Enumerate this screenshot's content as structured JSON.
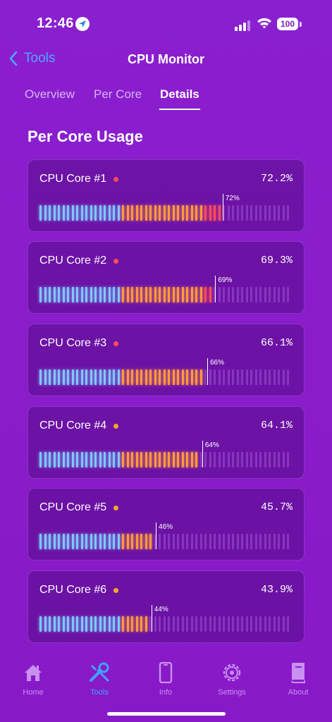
{
  "status_bar": {
    "time": "12:46",
    "battery": "100"
  },
  "nav": {
    "back_label": "Tools",
    "title": "CPU Monitor"
  },
  "tabs": [
    {
      "label": "Overview",
      "active": false
    },
    {
      "label": "Per Core",
      "active": false
    },
    {
      "label": "Details",
      "active": true
    }
  ],
  "section": {
    "title": "Per Core Usage"
  },
  "cores": [
    {
      "name": "CPU Core #1",
      "value": "72.2%",
      "marker": "72%",
      "usage": 0.722,
      "dot_color": "#ff4d5a"
    },
    {
      "name": "CPU Core #2",
      "value": "69.3%",
      "marker": "69%",
      "usage": 0.693,
      "dot_color": "#ff4d5a"
    },
    {
      "name": "CPU Core #3",
      "value": "66.1%",
      "marker": "66%",
      "usage": 0.661,
      "dot_color": "#ff4d5a"
    },
    {
      "name": "CPU Core #4",
      "value": "64.1%",
      "marker": "64%",
      "usage": 0.641,
      "dot_color": "#f5a623"
    },
    {
      "name": "CPU Core #5",
      "value": "45.7%",
      "marker": "46%",
      "usage": 0.457,
      "dot_color": "#f5a623"
    },
    {
      "name": "CPU Core #6",
      "value": "43.9%",
      "marker": "44%",
      "usage": 0.439,
      "dot_color": "#f5a623"
    }
  ],
  "colors": {
    "low": "#7ec8ff",
    "mid": "#ff9a3c",
    "high": "#ff4d5a",
    "empty": "#9a4fd0",
    "accent": "#3fa3ff"
  },
  "tab_bar": [
    {
      "label": "Home",
      "icon": "home-icon",
      "active": false
    },
    {
      "label": "Tools",
      "icon": "tools-icon",
      "active": true
    },
    {
      "label": "Info",
      "icon": "phone-icon",
      "active": false
    },
    {
      "label": "Settings",
      "icon": "gear-icon",
      "active": false
    },
    {
      "label": "About",
      "icon": "book-icon",
      "active": false
    }
  ]
}
